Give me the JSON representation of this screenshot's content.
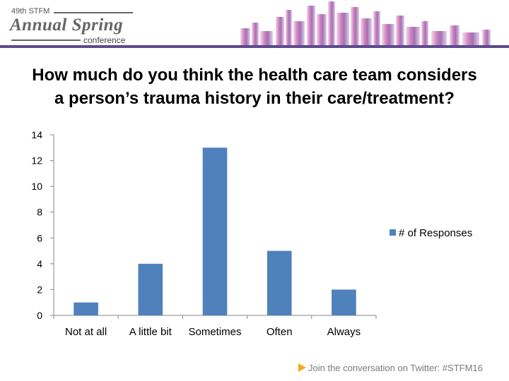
{
  "header": {
    "logo_top": "49th STFM",
    "logo_main": "Annual Spring",
    "logo_bottom": "conference",
    "bar_color": "#5b4a8b"
  },
  "footer": {
    "text": "Join the conversation on Twitter: #STFM16",
    "icon": "play-arrow-icon",
    "icon_color": "#f5a81c"
  },
  "chart_data": {
    "type": "bar",
    "title": "How much do you think the health care team considers a person’s trauma history in their care/treatment?",
    "categories": [
      "Not at all",
      "A little bit",
      "Sometimes",
      "Often",
      "Always"
    ],
    "series": [
      {
        "name": "# of Responses",
        "values": [
          1,
          4,
          13,
          5,
          2
        ],
        "color": "#4f81bd"
      }
    ],
    "ylim": [
      0,
      14
    ],
    "yticks": [
      0,
      2,
      4,
      6,
      8,
      10,
      12,
      14
    ],
    "grid": false,
    "legend": "right"
  }
}
